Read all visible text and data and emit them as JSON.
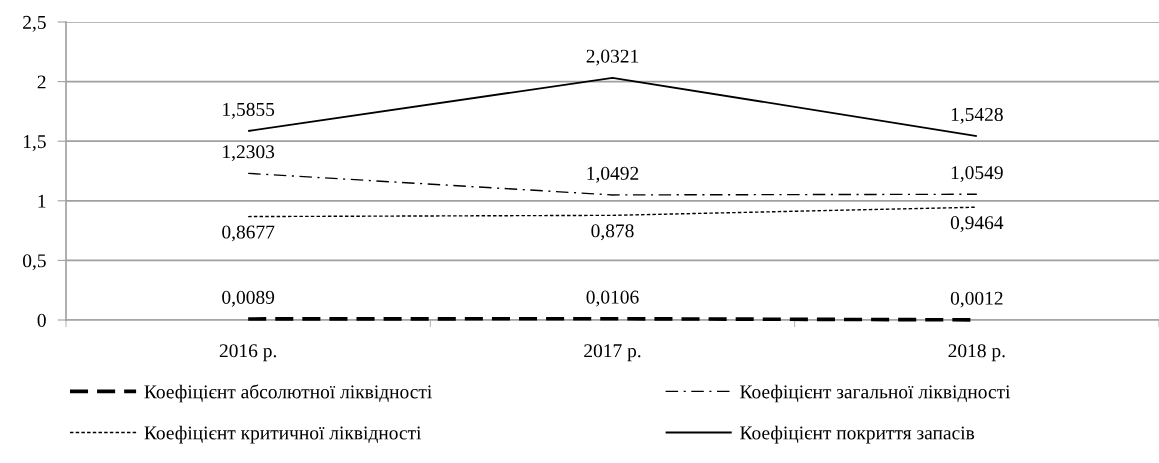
{
  "chart_data": {
    "type": "line",
    "categories": [
      "2016 р.",
      "2017 р.",
      "2018 р."
    ],
    "series": [
      {
        "name": "Коефіцієнт абсолютної ліквідності",
        "color": "#000000",
        "line_style": "dashed",
        "values": [
          0.0089,
          0.0106,
          0.0012
        ],
        "value_labels": [
          "0,0089",
          "0,0106",
          "0,0012"
        ]
      },
      {
        "name": "Коефіцієнт критичної ліквідності",
        "color": "#000000",
        "line_style": "dotted",
        "values": [
          0.8677,
          0.878,
          0.9464
        ],
        "value_labels": [
          "0,8677",
          "0,878",
          "0,9464"
        ]
      },
      {
        "name": "Коефіцієнт загальної ліквідності",
        "color": "#000000",
        "line_style": "dashdot",
        "values": [
          1.2303,
          1.0492,
          1.0549
        ],
        "value_labels": [
          "1,2303",
          "1,0492",
          "1,0549"
        ]
      },
      {
        "name": "Коефіцієнт покриття запасів",
        "color": "#000000",
        "line_style": "solid",
        "values": [
          1.5855,
          2.0321,
          1.5428
        ],
        "value_labels": [
          "1,5855",
          "2,0321",
          "1,5428"
        ]
      }
    ],
    "ylim": [
      0,
      2.5
    ],
    "yticks": [
      0,
      {
        "value": 0.5,
        "label": "0,5"
      },
      1,
      {
        "value": 1.5,
        "label": "1,5"
      },
      2,
      {
        "value": 2.5,
        "label": "2,5"
      }
    ],
    "grid": "y",
    "legend": "bottom"
  }
}
